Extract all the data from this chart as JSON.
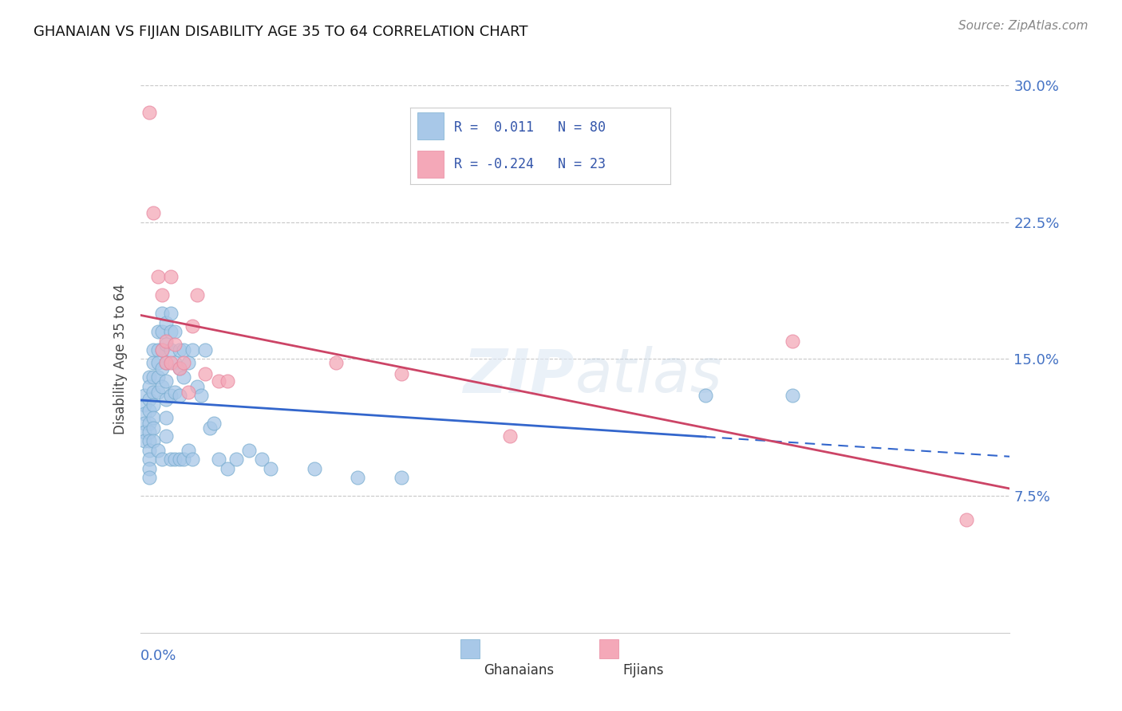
{
  "title": "GHANAIAN VS FIJIAN DISABILITY AGE 35 TO 64 CORRELATION CHART",
  "source": "Source: ZipAtlas.com",
  "ylabel": "Disability Age 35 to 64",
  "xlim": [
    0.0,
    0.2
  ],
  "ylim": [
    0.0,
    0.3
  ],
  "ytick_vals": [
    0.075,
    0.15,
    0.225,
    0.3
  ],
  "ytick_labels": [
    "7.5%",
    "15.0%",
    "22.5%",
    "30.0%"
  ],
  "xticks": [
    0.0,
    0.05,
    0.1,
    0.15,
    0.2
  ],
  "ghanaian_R": 0.011,
  "ghanaian_N": 80,
  "fijian_R": -0.224,
  "fijian_N": 23,
  "blue_color": "#a8c8e8",
  "pink_color": "#f4a8b8",
  "blue_edge_color": "#7aaed0",
  "pink_edge_color": "#e888a0",
  "blue_line_color": "#3366cc",
  "pink_line_color": "#cc4466",
  "watermark": "ZIPatlas",
  "ghanaian_x": [
    0.001,
    0.001,
    0.001,
    0.001,
    0.001,
    0.001,
    0.002,
    0.002,
    0.002,
    0.002,
    0.002,
    0.002,
    0.002,
    0.002,
    0.002,
    0.002,
    0.002,
    0.003,
    0.003,
    0.003,
    0.003,
    0.003,
    0.003,
    0.003,
    0.003,
    0.004,
    0.004,
    0.004,
    0.004,
    0.004,
    0.004,
    0.005,
    0.005,
    0.005,
    0.005,
    0.005,
    0.005,
    0.006,
    0.006,
    0.006,
    0.006,
    0.006,
    0.006,
    0.006,
    0.007,
    0.007,
    0.007,
    0.007,
    0.007,
    0.008,
    0.008,
    0.008,
    0.008,
    0.009,
    0.009,
    0.009,
    0.009,
    0.01,
    0.01,
    0.01,
    0.011,
    0.011,
    0.012,
    0.012,
    0.013,
    0.014,
    0.015,
    0.016,
    0.017,
    0.018,
    0.02,
    0.022,
    0.025,
    0.028,
    0.03,
    0.04,
    0.05,
    0.06,
    0.13,
    0.15
  ],
  "ghanaian_y": [
    0.13,
    0.125,
    0.12,
    0.115,
    0.11,
    0.105,
    0.14,
    0.135,
    0.128,
    0.122,
    0.115,
    0.11,
    0.105,
    0.1,
    0.095,
    0.09,
    0.085,
    0.155,
    0.148,
    0.14,
    0.132,
    0.125,
    0.118,
    0.112,
    0.105,
    0.165,
    0.155,
    0.148,
    0.14,
    0.132,
    0.1,
    0.175,
    0.165,
    0.155,
    0.145,
    0.135,
    0.095,
    0.17,
    0.158,
    0.148,
    0.138,
    0.128,
    0.118,
    0.108,
    0.175,
    0.165,
    0.155,
    0.13,
    0.095,
    0.165,
    0.148,
    0.132,
    0.095,
    0.155,
    0.145,
    0.13,
    0.095,
    0.155,
    0.14,
    0.095,
    0.148,
    0.1,
    0.155,
    0.095,
    0.135,
    0.13,
    0.155,
    0.112,
    0.115,
    0.095,
    0.09,
    0.095,
    0.1,
    0.095,
    0.09,
    0.09,
    0.085,
    0.085,
    0.13,
    0.13
  ],
  "fijian_x": [
    0.002,
    0.003,
    0.004,
    0.005,
    0.005,
    0.006,
    0.006,
    0.007,
    0.007,
    0.008,
    0.009,
    0.01,
    0.011,
    0.012,
    0.013,
    0.015,
    0.018,
    0.02,
    0.045,
    0.06,
    0.085,
    0.15,
    0.19
  ],
  "fijian_y": [
    0.285,
    0.23,
    0.195,
    0.185,
    0.155,
    0.16,
    0.148,
    0.195,
    0.148,
    0.158,
    0.145,
    0.148,
    0.132,
    0.168,
    0.185,
    0.142,
    0.138,
    0.138,
    0.148,
    0.142,
    0.108,
    0.16,
    0.062
  ]
}
